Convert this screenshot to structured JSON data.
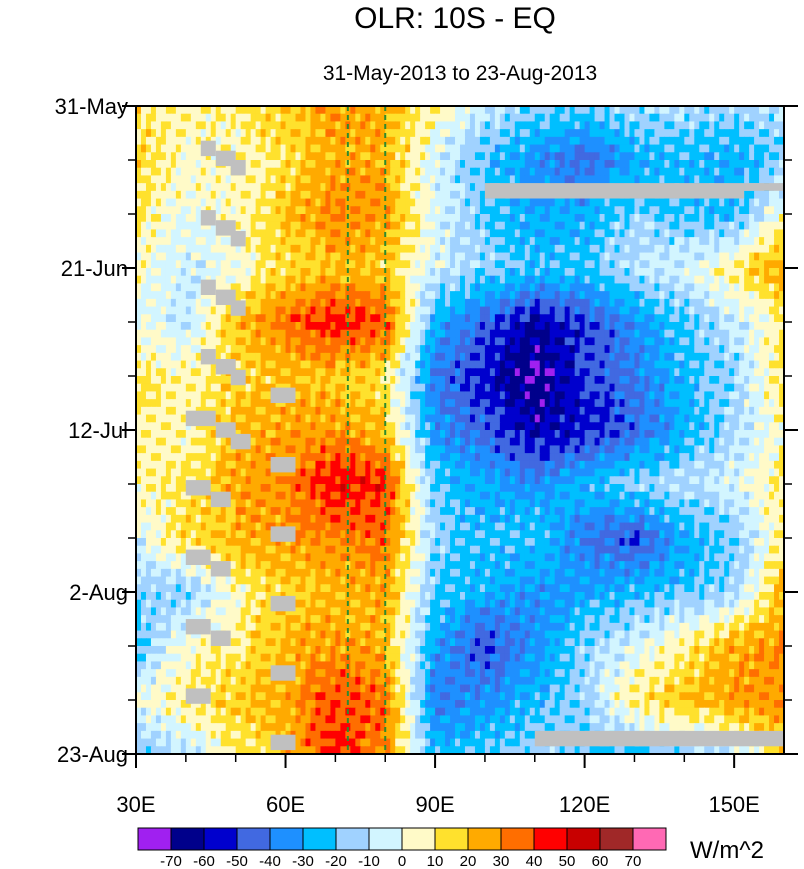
{
  "chart_data": {
    "type": "heatmap",
    "title": "OLR: 10S - EQ",
    "subtitle": "31-May-2013 to 23-Aug-2013",
    "xlabel": "",
    "ylabel": "",
    "x_range": [
      30,
      160
    ],
    "x_ticks": [
      {
        "value": 30,
        "label": "30E"
      },
      {
        "value": 60,
        "label": "60E"
      },
      {
        "value": 90,
        "label": "90E"
      },
      {
        "value": 120,
        "label": "120E"
      },
      {
        "value": 150,
        "label": "150E"
      }
    ],
    "y_range_days": [
      0,
      84
    ],
    "y_ticks": [
      {
        "value": 0,
        "label": "31-May"
      },
      {
        "value": 21,
        "label": "21-Jun"
      },
      {
        "value": 42,
        "label": "12-Jul"
      },
      {
        "value": 63,
        "label": "2-Aug"
      },
      {
        "value": 84,
        "label": "23-Aug"
      }
    ],
    "reference_lines_lon": [
      72.5,
      80
    ],
    "reference_line_color": "#2e8b2e",
    "colorbar": {
      "unit": "W/m^2",
      "levels": [
        -70,
        -60,
        -50,
        -40,
        -30,
        -20,
        -10,
        0,
        10,
        20,
        30,
        40,
        50,
        60,
        70
      ],
      "level_labels": [
        "-70",
        "-60",
        "-50",
        "-40",
        "-30",
        "-20",
        "-10",
        "0",
        "10",
        "20",
        "30",
        "40",
        "50",
        "60",
        "70"
      ],
      "colors": [
        "#a020f0",
        "#00008b",
        "#0000cd",
        "#4169e1",
        "#1e90ff",
        "#00bfff",
        "#a0d2ff",
        "#d2f5ff",
        "#fffac8",
        "#ffe12d",
        "#ffaa00",
        "#ff6e00",
        "#ff0000",
        "#c80000",
        "#a02828",
        "#ff69b4"
      ]
    },
    "missing_color": "#c0c0c0",
    "anomaly_grid": {
      "lons": [
        30,
        40,
        50,
        60,
        70,
        80,
        90,
        100,
        110,
        120,
        130,
        140,
        150,
        160
      ],
      "days": [
        0,
        7,
        14,
        21,
        28,
        35,
        42,
        49,
        56,
        63,
        70,
        77,
        84
      ],
      "values": [
        [
          12,
          8,
          10,
          18,
          28,
          24,
          8,
          -8,
          -15,
          -18,
          -12,
          -10,
          -15,
          -10
        ],
        [
          15,
          5,
          5,
          12,
          26,
          22,
          -5,
          -22,
          -35,
          -45,
          -30,
          -25,
          -28,
          -18
        ],
        [
          10,
          0,
          5,
          20,
          32,
          28,
          -2,
          -20,
          -30,
          -28,
          -15,
          -22,
          -25,
          5
        ],
        [
          5,
          -8,
          2,
          15,
          20,
          18,
          -5,
          -15,
          -22,
          -20,
          -10,
          -5,
          10,
          28
        ],
        [
          0,
          -10,
          20,
          35,
          45,
          40,
          -28,
          -45,
          -60,
          -50,
          -35,
          -20,
          -8,
          10
        ],
        [
          12,
          8,
          15,
          20,
          20,
          12,
          -40,
          -55,
          -72,
          -50,
          -40,
          -25,
          -15,
          15
        ],
        [
          10,
          5,
          22,
          25,
          28,
          20,
          -35,
          -45,
          -60,
          -55,
          -45,
          -28,
          -12,
          5
        ],
        [
          8,
          10,
          25,
          30,
          48,
          42,
          -20,
          -30,
          -35,
          -25,
          -15,
          -10,
          -5,
          12
        ],
        [
          -5,
          15,
          22,
          28,
          30,
          35,
          -15,
          -25,
          -20,
          -40,
          -50,
          -30,
          -18,
          10
        ],
        [
          -15,
          -18,
          5,
          18,
          22,
          25,
          -20,
          -28,
          -35,
          -30,
          -25,
          -20,
          -15,
          25
        ],
        [
          -25,
          5,
          10,
          22,
          28,
          22,
          -30,
          -50,
          -35,
          -15,
          -5,
          10,
          25,
          30
        ],
        [
          0,
          10,
          18,
          25,
          40,
          35,
          -40,
          -35,
          -25,
          -15,
          12,
          20,
          28,
          30
        ],
        [
          -20,
          -10,
          10,
          20,
          45,
          30,
          -25,
          -20,
          -15,
          -20,
          -25,
          -15,
          -10,
          20
        ]
      ]
    }
  }
}
